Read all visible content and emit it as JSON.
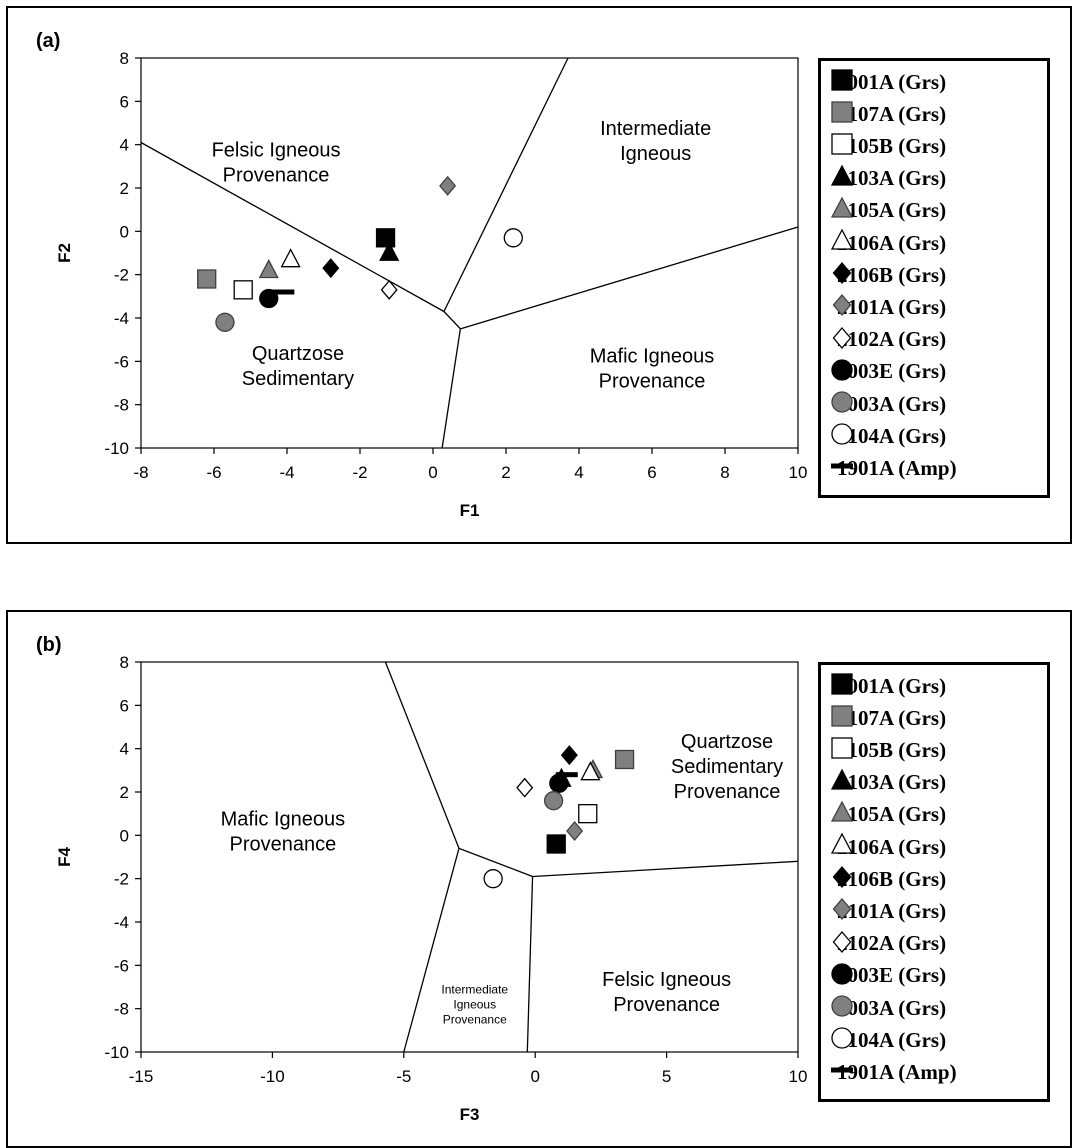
{
  "series_styles": [
    {
      "name": "2001A (Grs)",
      "shape": "square",
      "fill": "#000000",
      "stroke": "#000000"
    },
    {
      "name": "2107A (Grs)",
      "shape": "square",
      "fill": "#808080",
      "stroke": "#404040"
    },
    {
      "name": "2105B (Grs)",
      "shape": "square",
      "fill": "#ffffff",
      "stroke": "#000000"
    },
    {
      "name": "2103A (Grs)",
      "shape": "triangle",
      "fill": "#000000",
      "stroke": "#000000"
    },
    {
      "name": "2105A (Grs)",
      "shape": "triangle",
      "fill": "#808080",
      "stroke": "#404040"
    },
    {
      "name": "2106A (Grs)",
      "shape": "triangle",
      "fill": "#ffffff",
      "stroke": "#000000"
    },
    {
      "name": "2106B (Grs)",
      "shape": "diamond",
      "fill": "#000000",
      "stroke": "#000000"
    },
    {
      "name": "2101A (Grs)",
      "shape": "diamond",
      "fill": "#808080",
      "stroke": "#404040"
    },
    {
      "name": "2102A (Grs)",
      "shape": "diamond",
      "fill": "#ffffff",
      "stroke": "#000000"
    },
    {
      "name": "2003E (Grs)",
      "shape": "circle",
      "fill": "#000000",
      "stroke": "#000000"
    },
    {
      "name": "2003A (Grs)",
      "shape": "circle",
      "fill": "#808080",
      "stroke": "#404040"
    },
    {
      "name": "2104A (Grs)",
      "shape": "circle",
      "fill": "#ffffff",
      "stroke": "#000000"
    },
    {
      "name": "1901A (Amp)",
      "shape": "dash",
      "fill": "#000000",
      "stroke": "#000000"
    }
  ],
  "chart_data": [
    {
      "panel_label": "(a)",
      "type": "scatter",
      "xlabel": "F1",
      "ylabel": "F2",
      "xlim": [
        -8,
        10
      ],
      "ylim": [
        -10,
        8
      ],
      "xticks": [
        -8,
        -6,
        -4,
        -2,
        0,
        2,
        4,
        6,
        8,
        10
      ],
      "yticks": [
        -10,
        -8,
        -6,
        -4,
        -2,
        0,
        2,
        4,
        6,
        8
      ],
      "boundaries": [
        [
          [
            -8,
            4.1
          ],
          [
            0.3,
            -3.7
          ]
        ],
        [
          [
            0.3,
            -3.7
          ],
          [
            3.7,
            8
          ]
        ],
        [
          [
            0.3,
            -3.7
          ],
          [
            0.75,
            -4.5
          ]
        ],
        [
          [
            0.75,
            -4.5
          ],
          [
            10,
            0.2
          ]
        ],
        [
          [
            0.75,
            -4.5
          ],
          [
            0.25,
            -10
          ]
        ]
      ],
      "regions": [
        {
          "lines": [
            "Felsic Igneous",
            "Provenance"
          ],
          "x": -4.3,
          "y": 3.2
        },
        {
          "lines": [
            "Intermediate",
            "Igneous"
          ],
          "x": 6.1,
          "y": 4.2
        },
        {
          "lines": [
            "Quartzose",
            "Sedimentary"
          ],
          "x": -3.7,
          "y": -6.2
        },
        {
          "lines": [
            "Mafic Igneous",
            "Provenance"
          ],
          "x": 6.0,
          "y": -6.3
        }
      ],
      "series": [
        {
          "name": "2001A (Grs)",
          "x": [
            -1.3
          ],
          "y": [
            -0.3
          ]
        },
        {
          "name": "2107A (Grs)",
          "x": [
            -6.2
          ],
          "y": [
            -2.2
          ]
        },
        {
          "name": "2105B (Grs)",
          "x": [
            -5.2
          ],
          "y": [
            -2.7
          ]
        },
        {
          "name": "2103A (Grs)",
          "x": [
            -1.2
          ],
          "y": [
            -1.0
          ]
        },
        {
          "name": "2105A (Grs)",
          "x": [
            -4.5
          ],
          "y": [
            -1.8
          ]
        },
        {
          "name": "2106A (Grs)",
          "x": [
            -3.9
          ],
          "y": [
            -1.3
          ]
        },
        {
          "name": "2106B (Grs)",
          "x": [
            -2.8
          ],
          "y": [
            -1.7
          ]
        },
        {
          "name": "2101A (Grs)",
          "x": [
            0.4
          ],
          "y": [
            2.1
          ]
        },
        {
          "name": "2102A (Grs)",
          "x": [
            -1.2
          ],
          "y": [
            -2.7
          ]
        },
        {
          "name": "2003E (Grs)",
          "x": [
            -4.5
          ],
          "y": [
            -3.1
          ]
        },
        {
          "name": "2003A (Grs)",
          "x": [
            -5.7
          ],
          "y": [
            -4.2
          ]
        },
        {
          "name": "2104A (Grs)",
          "x": [
            2.2
          ],
          "y": [
            -0.3
          ]
        },
        {
          "name": "1901A (Amp)",
          "x": [
            -4.1
          ],
          "y": [
            -2.8
          ]
        }
      ]
    },
    {
      "panel_label": "(b)",
      "type": "scatter",
      "xlabel": "F3",
      "ylabel": "F4",
      "xlim": [
        -15,
        10
      ],
      "ylim": [
        -10,
        8
      ],
      "xticks": [
        -15,
        -10,
        -5,
        0,
        5,
        10
      ],
      "yticks": [
        -10,
        -8,
        -6,
        -4,
        -2,
        0,
        2,
        4,
        6,
        8
      ],
      "boundaries": [
        [
          [
            -5.7,
            8
          ],
          [
            -2.9,
            -0.6
          ]
        ],
        [
          [
            -2.9,
            -0.6
          ],
          [
            -0.1,
            -1.9
          ]
        ],
        [
          [
            -0.1,
            -1.9
          ],
          [
            10,
            -1.2
          ]
        ],
        [
          [
            -2.9,
            -0.6
          ],
          [
            -5.0,
            -10
          ]
        ],
        [
          [
            -0.1,
            -1.9
          ],
          [
            -0.3,
            -10
          ]
        ]
      ],
      "regions": [
        {
          "lines": [
            "Mafic Igneous",
            "Provenance"
          ],
          "x": -9.6,
          "y": 0.2
        },
        {
          "lines": [
            "Quartzose",
            "Sedimentary",
            "Provenance"
          ],
          "x": 7.3,
          "y": 3.2
        },
        {
          "lines": [
            "Felsic Igneous",
            "Provenance"
          ],
          "x": 5.0,
          "y": -7.2
        },
        {
          "lines": [
            "Intermediate",
            "Igneous",
            "Provenance"
          ],
          "x": -2.3,
          "y": -7.8,
          "small": true
        }
      ],
      "series": [
        {
          "name": "2001A (Grs)",
          "x": [
            0.8
          ],
          "y": [
            -0.4
          ]
        },
        {
          "name": "2107A (Grs)",
          "x": [
            3.4
          ],
          "y": [
            3.5
          ]
        },
        {
          "name": "2105B (Grs)",
          "x": [
            2.0
          ],
          "y": [
            1.0
          ]
        },
        {
          "name": "2103A (Grs)",
          "x": [
            1.0
          ],
          "y": [
            2.6
          ]
        },
        {
          "name": "2105A (Grs)",
          "x": [
            2.2
          ],
          "y": [
            3.0
          ]
        },
        {
          "name": "2106A (Grs)",
          "x": [
            2.1
          ],
          "y": [
            2.9
          ]
        },
        {
          "name": "2106B (Grs)",
          "x": [
            1.3
          ],
          "y": [
            3.7
          ]
        },
        {
          "name": "2101A (Grs)",
          "x": [
            1.5
          ],
          "y": [
            0.2
          ]
        },
        {
          "name": "2102A (Grs)",
          "x": [
            -0.4
          ],
          "y": [
            2.2
          ]
        },
        {
          "name": "2003E (Grs)",
          "x": [
            0.9
          ],
          "y": [
            2.4
          ]
        },
        {
          "name": "2003A (Grs)",
          "x": [
            0.7
          ],
          "y": [
            1.6
          ]
        },
        {
          "name": "2104A (Grs)",
          "x": [
            -1.6
          ],
          "y": [
            -2.0
          ]
        },
        {
          "name": "1901A (Amp)",
          "x": [
            1.2
          ],
          "y": [
            2.8
          ]
        }
      ]
    }
  ]
}
